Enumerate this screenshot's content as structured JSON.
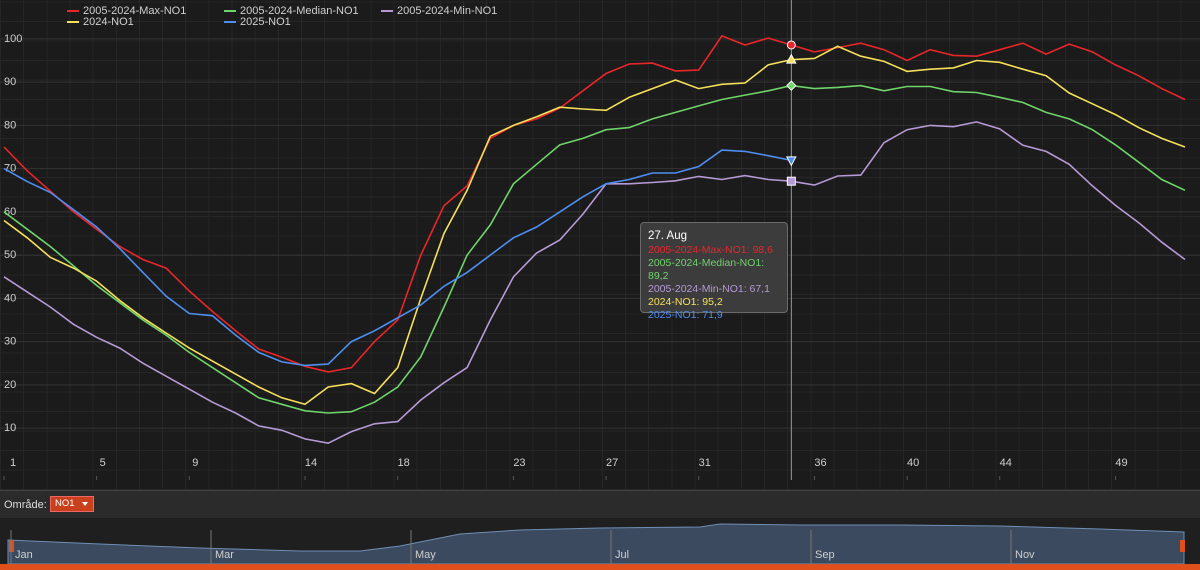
{
  "chart_data": {
    "type": "line",
    "x": [
      1,
      2,
      3,
      4,
      5,
      6,
      7,
      8,
      9,
      10,
      11,
      12,
      13,
      14,
      15,
      16,
      17,
      18,
      19,
      20,
      21,
      22,
      23,
      24,
      25,
      26,
      27,
      28,
      29,
      30,
      31,
      32,
      33,
      34,
      35,
      36,
      37,
      38,
      39,
      40,
      41,
      42,
      43,
      44,
      45,
      46,
      47,
      48,
      49,
      50,
      51,
      52
    ],
    "xlim": [
      1,
      52
    ],
    "xticks": [
      1,
      5,
      9,
      14,
      18,
      23,
      27,
      31,
      36,
      40,
      44,
      49
    ],
    "ylim": [
      -2,
      109
    ],
    "yticks": [
      10,
      20,
      30,
      40,
      50,
      60,
      70,
      80,
      90,
      100
    ],
    "grid": true,
    "series": [
      {
        "name": "2005-2024-Max-NO1",
        "color": "#e8262a",
        "marker": "circle",
        "values": [
          75,
          69.5,
          64.8,
          60,
          56,
          52,
          49,
          47,
          41.7,
          37,
          32.5,
          28.3,
          26.4,
          24.3,
          23,
          24,
          30,
          35,
          50,
          61.4,
          66,
          77,
          80,
          81.5,
          84,
          88,
          92,
          94.2,
          94.4,
          92.6,
          92.8,
          100.7,
          98.6,
          100.2,
          98.6,
          97,
          98,
          99,
          97.5,
          95,
          97.5,
          96.2,
          96,
          97.5,
          99,
          96.5,
          98.8,
          97,
          94,
          91.5,
          88.5,
          86
        ]
      },
      {
        "name": "2005-2024-Median-NO1",
        "color": "#6fd46a",
        "marker": "diamond",
        "values": [
          60,
          56,
          52,
          47.5,
          43,
          39,
          35,
          31.5,
          27.5,
          24,
          20.5,
          17,
          15.5,
          14,
          13.5,
          13.8,
          16,
          19.5,
          26.5,
          38,
          50,
          57,
          66.5,
          71,
          75.5,
          77,
          79,
          79.5,
          81.5,
          83,
          84.5,
          86,
          87,
          88,
          89.2,
          88.5,
          88.8,
          89.2,
          88,
          89,
          89,
          87.8,
          87.6,
          86.5,
          85.3,
          83,
          81.5,
          79,
          75.5,
          71.5,
          67.5,
          65
        ]
      },
      {
        "name": "2005-2024-Min-NO1",
        "color": "#b59ad6",
        "marker": "square",
        "values": [
          45,
          41.5,
          38,
          34,
          31,
          28.5,
          25,
          22,
          19,
          16,
          13.5,
          10.5,
          9.5,
          7.5,
          6.5,
          9.2,
          11,
          11.5,
          16.5,
          20.5,
          24,
          35,
          45,
          50.5,
          53.5,
          59.5,
          66.5,
          66.5,
          66.8,
          67.2,
          68.2,
          67.5,
          68.4,
          67.5,
          67.1,
          66.2,
          68.3,
          68.5,
          76,
          79,
          80,
          79.7,
          80.8,
          79.2,
          75.4,
          74,
          71,
          66,
          61.5,
          57.5,
          53,
          49
        ]
      },
      {
        "name": "2024-NO1",
        "color": "#f5e05a",
        "marker": "triangle",
        "values": [
          58,
          54,
          49.5,
          47,
          44,
          39.5,
          35.5,
          32,
          28.5,
          25.5,
          22.5,
          19.5,
          17,
          15.5,
          19.5,
          20.3,
          18,
          24,
          40,
          55,
          65,
          77.5,
          80,
          82,
          84.2,
          83.8,
          83.5,
          86.5,
          88.5,
          90.5,
          88.5,
          89.5,
          89.8,
          94,
          95.2,
          95.5,
          98.3,
          96,
          94.8,
          92.5,
          93,
          93.3,
          95,
          94.6,
          93,
          91.5,
          87.5,
          85,
          82.5,
          79.5,
          77,
          75
        ]
      },
      {
        "name": "2025-NO1",
        "color": "#4f8ef0",
        "marker": "triangle-down",
        "values": [
          70,
          67,
          64.5,
          60.5,
          56.5,
          51.5,
          46,
          40.5,
          36.5,
          36,
          31.5,
          27.5,
          25.3,
          24.5,
          24.8,
          30,
          32.5,
          35.5,
          38.5,
          42.8,
          46,
          50,
          54,
          56.5,
          60,
          63.5,
          66.5,
          67.5,
          69,
          69,
          70.5,
          74.3,
          74,
          73,
          71.9,
          null,
          null,
          null,
          null,
          null,
          null,
          null,
          null,
          null,
          null,
          null,
          null,
          null,
          null,
          null,
          null,
          null
        ]
      }
    ],
    "hover_x": 35,
    "tooltip": {
      "title": "27. Aug",
      "lines": [
        "2005-2024-Max-NO1: 98,6",
        "2005-2024-Median-NO1: 89,2",
        "2005-2024-Min-NO1: 67,1",
        "2024-NO1: 95,2",
        "2025-NO1: 71,9"
      ]
    }
  },
  "controls": {
    "label": "Område:",
    "selected": "NO1"
  },
  "navigator": {
    "months": [
      "Jan",
      "Mar",
      "May",
      "Jul",
      "Sep",
      "Nov"
    ]
  }
}
